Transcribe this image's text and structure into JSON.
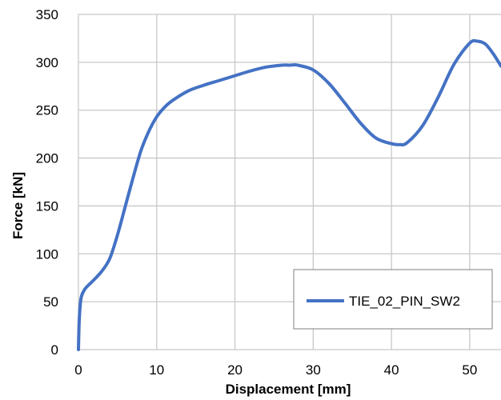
{
  "chart_data": {
    "type": "line",
    "title": "",
    "xlabel": "Displacement [mm]",
    "ylabel": "Force [kN]",
    "xlim": [
      0,
      54
    ],
    "ylim": [
      0,
      350
    ],
    "xticks": [
      0,
      10,
      20,
      30,
      40,
      50
    ],
    "yticks": [
      0,
      50,
      100,
      150,
      200,
      250,
      300,
      350
    ],
    "grid": true,
    "legend_position": "bottom-right",
    "series": [
      {
        "name": "TIE_02_PIN_SW2",
        "color": "#4472C4",
        "x": [
          0,
          0.1,
          0.3,
          0.6,
          1,
          2,
          3,
          4,
          5,
          6,
          7,
          8,
          9,
          10,
          11,
          12,
          14,
          16,
          18,
          20,
          22,
          24,
          26,
          27,
          28,
          30,
          32,
          34,
          36,
          38,
          40,
          41,
          42,
          44,
          46,
          48,
          50,
          51,
          52,
          53,
          54
        ],
        "y": [
          0,
          30,
          52,
          60,
          65,
          73,
          82,
          95,
          120,
          150,
          180,
          208,
          228,
          243,
          253,
          260,
          270,
          276,
          281,
          286,
          291,
          295,
          297,
          297,
          297,
          292,
          278,
          258,
          237,
          221,
          215,
          214,
          216,
          234,
          264,
          298,
          320,
          322,
          319,
          309,
          296
        ]
      }
    ]
  }
}
